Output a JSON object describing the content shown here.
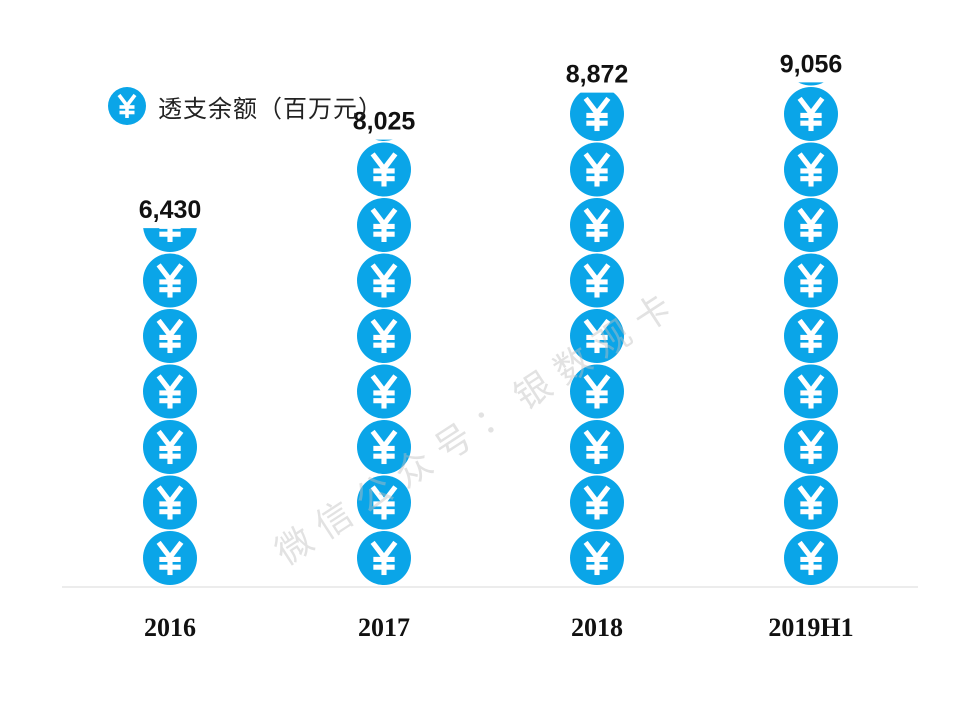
{
  "chart_data": {
    "type": "bar",
    "series_name": "透支余额（百万元）",
    "categories": [
      "2016",
      "2017",
      "2018",
      "2019H1"
    ],
    "values": [
      6430,
      8025,
      8872,
      9056
    ],
    "value_labels": [
      "6,430",
      "8,025",
      "8,872",
      "9,056"
    ],
    "ylim": [
      0,
      9056
    ],
    "legend_position": "top-left",
    "grid": false,
    "coin_symbol": "¥",
    "coin_unit": 1000,
    "bar_color": "#0AA5E8",
    "axis_color": "#D9D9D9"
  },
  "watermark": "微 信 公 众 号 ： 银 数 观 卡",
  "colors": {
    "accent": "#0AA5E8",
    "text": "#111111"
  }
}
